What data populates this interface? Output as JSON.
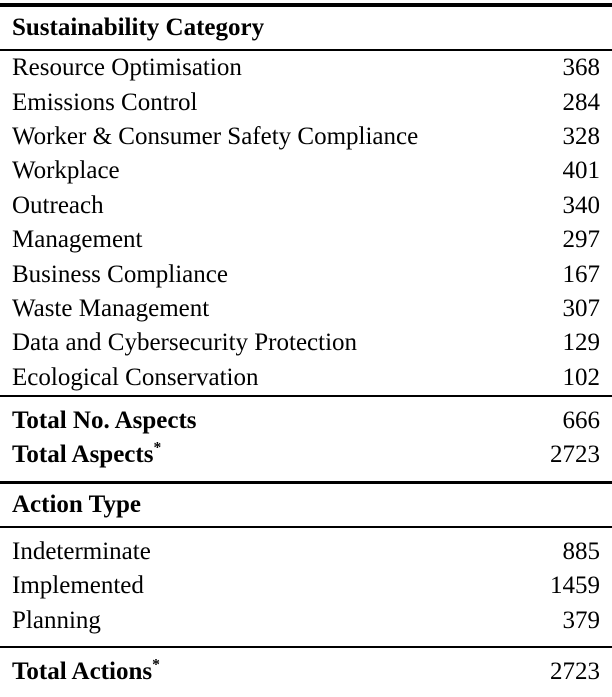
{
  "colors": {
    "text": "#000000",
    "rule": "#000000",
    "background": "#ffffff"
  },
  "table": {
    "section1": {
      "header": "Sustainability Category",
      "rows": [
        {
          "label": "Resource Optimisation",
          "value": "368"
        },
        {
          "label": "Emissions Control",
          "value": "284"
        },
        {
          "label": "Worker & Consumer Safety Compliance",
          "value": "328"
        },
        {
          "label": "Workplace",
          "value": "401"
        },
        {
          "label": "Outreach",
          "value": "340"
        },
        {
          "label": "Management",
          "value": "297"
        },
        {
          "label": "Business Compliance",
          "value": "167"
        },
        {
          "label": "Waste Management",
          "value": "307"
        },
        {
          "label": "Data and Cybersecurity Protection",
          "value": "129"
        },
        {
          "label": "Ecological Conservation",
          "value": "102"
        }
      ],
      "totals": [
        {
          "label": "Total No. Aspects",
          "sup": "",
          "value": "666"
        },
        {
          "label": "Total Aspects",
          "sup": "*",
          "value": "2723"
        }
      ]
    },
    "section2": {
      "header": "Action Type",
      "rows": [
        {
          "label": "Indeterminate",
          "value": "885"
        },
        {
          "label": "Implemented",
          "value": "1459"
        },
        {
          "label": "Planning",
          "value": "379"
        }
      ],
      "totals": [
        {
          "label": "Total Actions",
          "sup": "*",
          "value": "2723"
        }
      ]
    }
  }
}
